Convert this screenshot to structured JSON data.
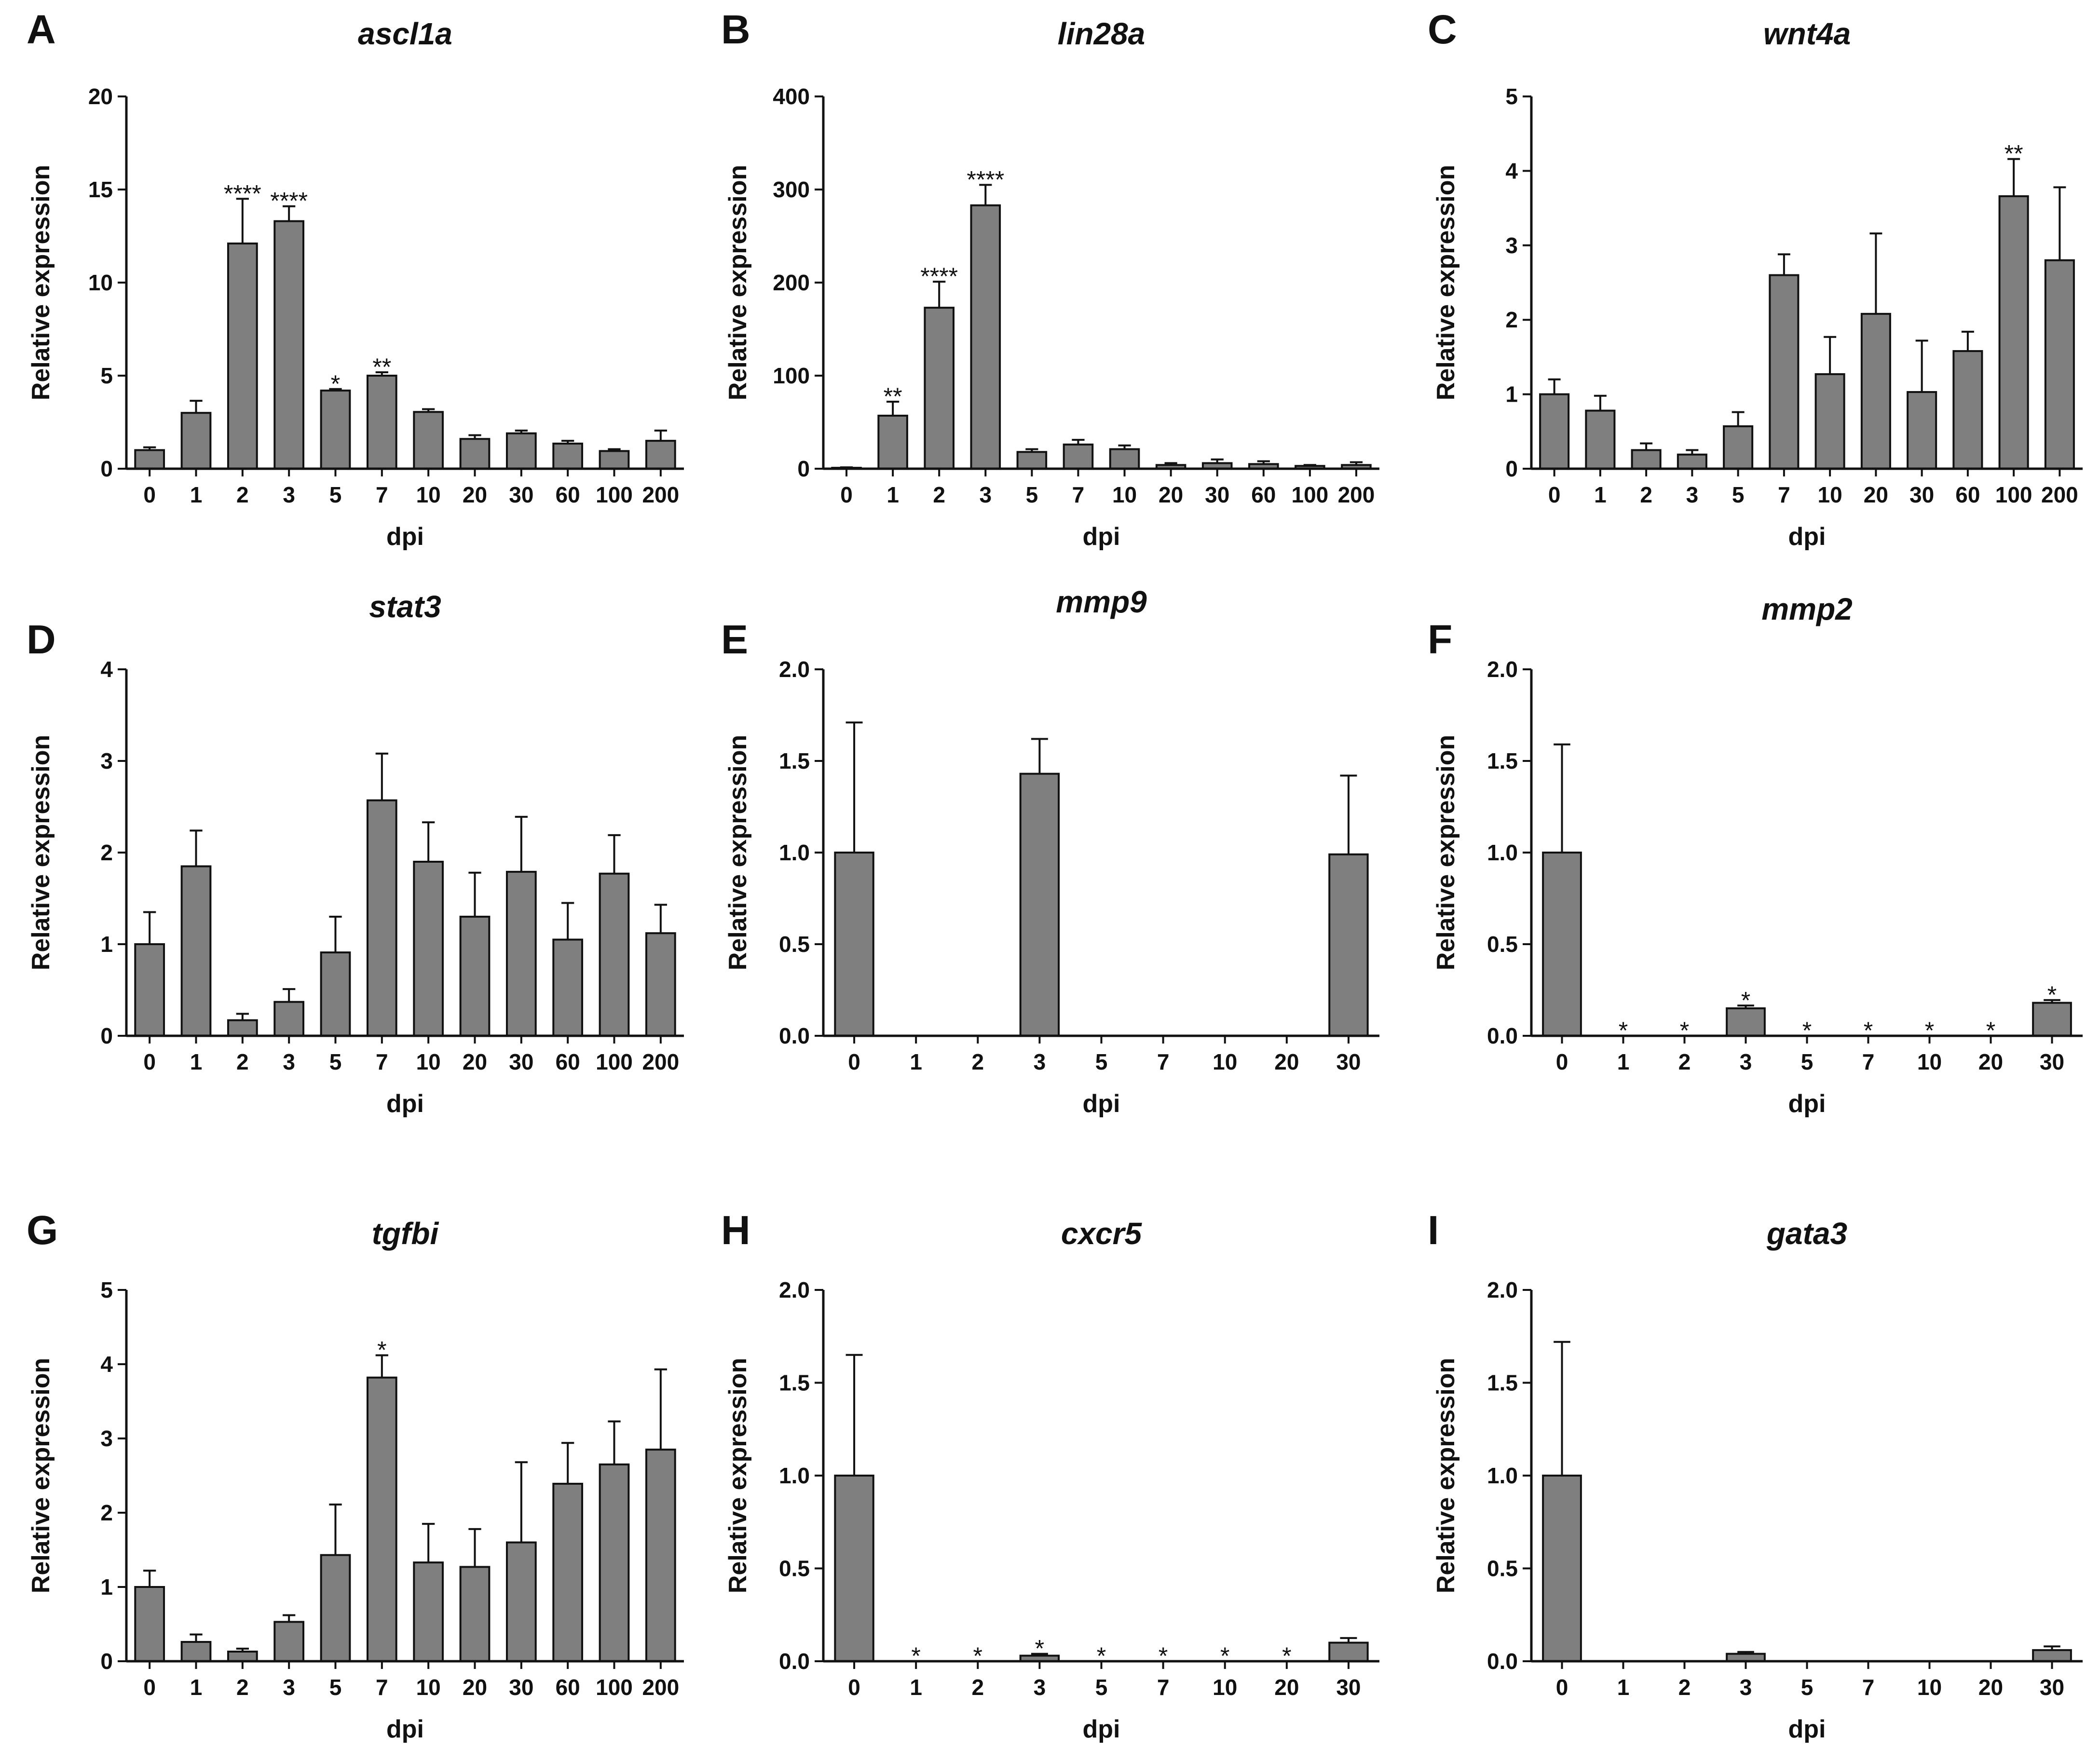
{
  "chart_data": [
    {
      "panel": "A",
      "title": "ascl1a",
      "type": "bar",
      "xlabel": "dpi",
      "ylabel": "Relative expression",
      "ylim": [
        0,
        20
      ],
      "yticks": [
        "0",
        "5",
        "10",
        "15",
        "20"
      ],
      "categories": [
        "0",
        "1",
        "2",
        "3",
        "5",
        "7",
        "10",
        "20",
        "30",
        "60",
        "100",
        "200"
      ],
      "values": [
        1.0,
        3.0,
        12.1,
        13.3,
        4.2,
        5.0,
        3.05,
        1.6,
        1.9,
        1.35,
        0.95,
        1.5
      ],
      "errors": [
        0.15,
        0.65,
        2.4,
        0.8,
        0.08,
        0.18,
        0.15,
        0.2,
        0.15,
        0.15,
        0.1,
        0.55
      ],
      "significance": [
        "",
        "",
        "****",
        "****",
        "*",
        "**",
        "",
        "",
        "",
        "",
        "",
        ""
      ]
    },
    {
      "panel": "B",
      "title": "lin28a",
      "type": "bar",
      "xlabel": "dpi",
      "ylabel": "Relative expression",
      "ylim": [
        0,
        400
      ],
      "yticks": [
        "0",
        "100",
        "200",
        "300",
        "400"
      ],
      "categories": [
        "0",
        "1",
        "2",
        "3",
        "5",
        "7",
        "10",
        "20",
        "30",
        "60",
        "100",
        "200"
      ],
      "values": [
        1,
        57,
        173,
        283,
        18,
        26,
        21,
        4,
        6,
        5,
        3,
        4
      ],
      "errors": [
        0.5,
        15,
        28,
        22,
        3,
        5,
        4,
        2,
        4,
        3,
        1,
        3
      ],
      "significance": [
        "",
        "**",
        "****",
        "****",
        "",
        "",
        "",
        "",
        "",
        "",
        "",
        ""
      ]
    },
    {
      "panel": "C",
      "title": "wnt4a",
      "type": "bar",
      "xlabel": "dpi",
      "ylabel": "Relative expression",
      "ylim": [
        0,
        5
      ],
      "yticks": [
        "0",
        "1",
        "2",
        "3",
        "4",
        "5"
      ],
      "categories": [
        "0",
        "1",
        "2",
        "3",
        "5",
        "7",
        "10",
        "20",
        "30",
        "60",
        "100",
        "200"
      ],
      "values": [
        1.0,
        0.78,
        0.25,
        0.19,
        0.57,
        2.6,
        1.27,
        2.08,
        1.03,
        1.58,
        3.66,
        2.8
      ],
      "errors": [
        0.2,
        0.2,
        0.09,
        0.06,
        0.19,
        0.28,
        0.5,
        1.08,
        0.69,
        0.26,
        0.5,
        0.98
      ],
      "significance": [
        "",
        "",
        "",
        "",
        "",
        "",
        "",
        "",
        "",
        "",
        "**",
        ""
      ]
    },
    {
      "panel": "D",
      "title": "stat3",
      "type": "bar",
      "xlabel": "dpi",
      "ylabel": "Relative expression",
      "ylim": [
        0,
        4
      ],
      "yticks": [
        "0",
        "1",
        "2",
        "3",
        "4"
      ],
      "categories": [
        "0",
        "1",
        "2",
        "3",
        "5",
        "7",
        "10",
        "20",
        "30",
        "60",
        "100",
        "200"
      ],
      "values": [
        1.0,
        1.85,
        0.17,
        0.37,
        0.91,
        2.57,
        1.9,
        1.3,
        1.79,
        1.05,
        1.77,
        1.12
      ],
      "errors": [
        0.35,
        0.39,
        0.07,
        0.14,
        0.39,
        0.51,
        0.43,
        0.48,
        0.6,
        0.4,
        0.42,
        0.31
      ],
      "significance": [
        "",
        "",
        "",
        "",
        "",
        "",
        "",
        "",
        "",
        "",
        "",
        ""
      ]
    },
    {
      "panel": "E",
      "title": "mmp9",
      "type": "bar",
      "xlabel": "dpi",
      "ylabel": "Relative expression",
      "ylim": [
        0,
        2
      ],
      "yticks": [
        "0.0",
        "0.5",
        "1.0",
        "1.5",
        "2.0"
      ],
      "categories": [
        "0",
        "1",
        "2",
        "3",
        "5",
        "7",
        "10",
        "20",
        "30"
      ],
      "values": [
        1.0,
        0,
        0,
        1.43,
        0,
        0,
        0,
        0,
        0.99
      ],
      "errors": [
        0.71,
        0,
        0,
        0.19,
        0,
        0,
        0,
        0,
        0.43
      ],
      "significance": [
        "",
        "",
        "",
        "",
        "",
        "",
        "",
        "",
        ""
      ]
    },
    {
      "panel": "F",
      "title": "mmp2",
      "type": "bar",
      "xlabel": "dpi",
      "ylabel": "Relative expression",
      "ylim": [
        0,
        2
      ],
      "yticks": [
        "0.0",
        "0.5",
        "1.0",
        "1.5",
        "2.0"
      ],
      "categories": [
        "0",
        "1",
        "2",
        "3",
        "5",
        "7",
        "10",
        "20",
        "30"
      ],
      "values": [
        1.0,
        0,
        0,
        0.15,
        0,
        0,
        0,
        0,
        0.18
      ],
      "errors": [
        0.59,
        0,
        0,
        0.015,
        0,
        0,
        0,
        0,
        0.015
      ],
      "significance": [
        "",
        "*",
        "*",
        "*",
        "*",
        "*",
        "*",
        "*",
        "*"
      ]
    },
    {
      "panel": "G",
      "title": "tgfbi",
      "type": "bar",
      "xlabel": "dpi",
      "ylabel": "Relative expression",
      "ylim": [
        0,
        5
      ],
      "yticks": [
        "0",
        "1",
        "2",
        "3",
        "4",
        "5"
      ],
      "categories": [
        "0",
        "1",
        "2",
        "3",
        "5",
        "7",
        "10",
        "20",
        "30",
        "60",
        "100",
        "200"
      ],
      "values": [
        1.0,
        0.26,
        0.13,
        0.53,
        1.43,
        3.82,
        1.33,
        1.27,
        1.6,
        2.39,
        2.65,
        2.85
      ],
      "errors": [
        0.22,
        0.1,
        0.04,
        0.09,
        0.68,
        0.3,
        0.52,
        0.51,
        1.08,
        0.55,
        0.58,
        1.08
      ],
      "significance": [
        "",
        "",
        "",
        "",
        "",
        "*",
        "",
        "",
        "",
        "",
        "",
        ""
      ]
    },
    {
      "panel": "H",
      "title": "cxcr5",
      "type": "bar",
      "xlabel": "dpi",
      "ylabel": "Relative expression",
      "ylim": [
        0,
        2
      ],
      "yticks": [
        "0.0",
        "0.5",
        "1.0",
        "1.5",
        "2.0"
      ],
      "categories": [
        "0",
        "1",
        "2",
        "3",
        "5",
        "7",
        "10",
        "20",
        "30"
      ],
      "values": [
        1.0,
        0,
        0,
        0.03,
        0,
        0,
        0,
        0,
        0.1
      ],
      "errors": [
        0.65,
        0,
        0,
        0.01,
        0,
        0,
        0,
        0,
        0.025
      ],
      "significance": [
        "",
        "*",
        "*",
        "*",
        "*",
        "*",
        "*",
        "*",
        ""
      ]
    },
    {
      "panel": "I",
      "title": "gata3",
      "type": "bar",
      "xlabel": "dpi",
      "ylabel": "Relative expression",
      "ylim": [
        0,
        2
      ],
      "yticks": [
        "0.0",
        "0.5",
        "1.0",
        "1.5",
        "2.0"
      ],
      "categories": [
        "0",
        "1",
        "2",
        "3",
        "5",
        "7",
        "10",
        "20",
        "30"
      ],
      "values": [
        1.0,
        0,
        0,
        0.04,
        0,
        0,
        0,
        0,
        0.06
      ],
      "errors": [
        0.72,
        0,
        0,
        0.01,
        0,
        0,
        0,
        0,
        0.02
      ],
      "significance": [
        "",
        "",
        "",
        "",
        "",
        "",
        "",
        "",
        ""
      ]
    }
  ],
  "colors": {
    "bar_fill": "#7f7f7f",
    "stroke": "#111111",
    "background": "#ffffff"
  }
}
